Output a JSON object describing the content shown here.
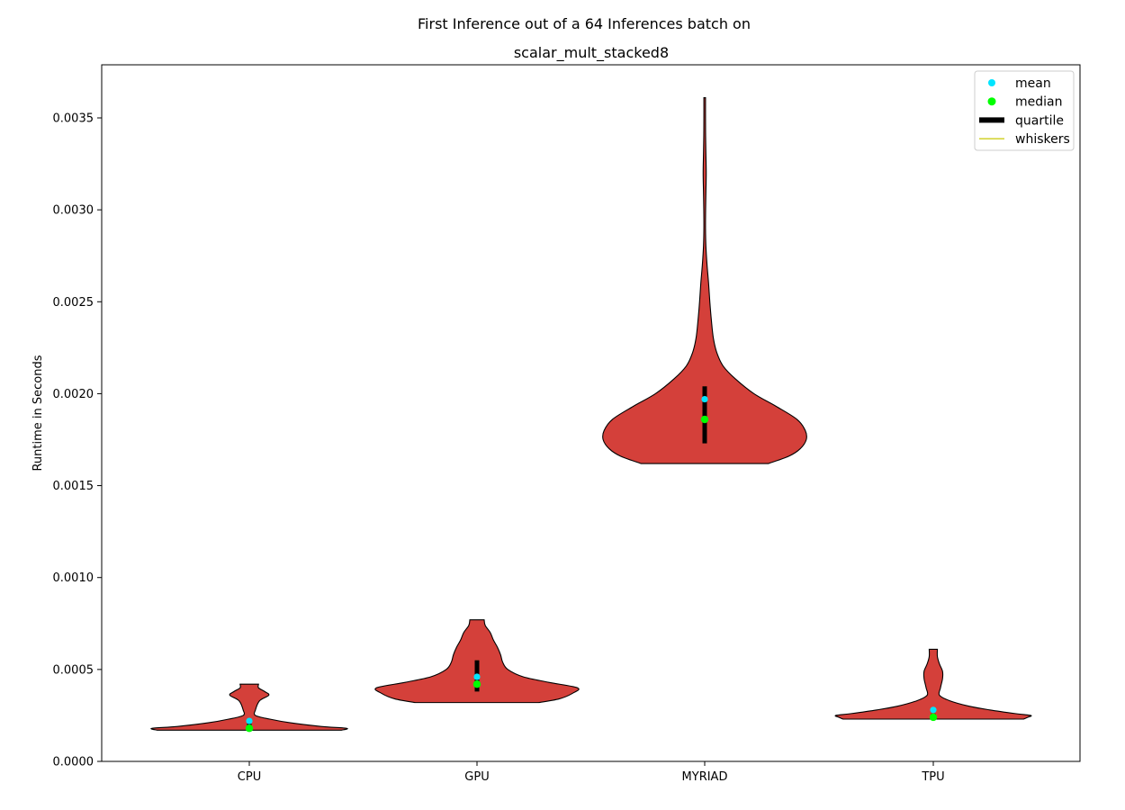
{
  "chart_data": {
    "type": "violin",
    "title_line1": "First Inference out of a 64 Inferences batch on",
    "title_line2": "scalar_mult_stacked8",
    "xlabel": "",
    "ylabel": "Runtime in Seconds",
    "ylim": [
      0,
      0.0038
    ],
    "yticks": [
      "0.0000",
      "0.0005",
      "0.0010",
      "0.0015",
      "0.0020",
      "0.0025",
      "0.0030",
      "0.0035"
    ],
    "grid": false,
    "legend_position": "top-right",
    "legend": [
      {
        "label": "mean",
        "symbol": "dot",
        "color": "#00e5ff"
      },
      {
        "label": "median",
        "symbol": "dot",
        "color": "#00ff00"
      },
      {
        "label": "quartile",
        "symbol": "bar",
        "color": "#000000"
      },
      {
        "label": "whiskers",
        "symbol": "line",
        "color": "#c8c800"
      }
    ],
    "colors": {
      "violin_fill": "#d4403a",
      "violin_edge": "#000000",
      "mean": "#00e5ff",
      "median": "#00ff00",
      "quartile": "#000000",
      "whiskers": "#c8c800"
    },
    "categories": [
      "CPU",
      "GPU",
      "MYRIAD",
      "TPU"
    ],
    "violins": [
      {
        "name": "CPU",
        "min": 0.00017,
        "max": 0.00042,
        "q1": 0.00017,
        "q3": 0.00023,
        "median": 0.00018,
        "mean": 0.00022,
        "whisker_low": 0.00017,
        "whisker_high": 0.00023,
        "profile": [
          [
            0.00017,
            0.9
          ],
          [
            0.00018,
            0.95
          ],
          [
            0.00019,
            0.7
          ],
          [
            0.00021,
            0.4
          ],
          [
            0.00023,
            0.2
          ],
          [
            0.00025,
            0.06
          ],
          [
            0.00028,
            0.06
          ],
          [
            0.00033,
            0.1
          ],
          [
            0.00036,
            0.19
          ],
          [
            0.00038,
            0.15
          ],
          [
            0.0004,
            0.09
          ],
          [
            0.00042,
            0.09
          ]
        ]
      },
      {
        "name": "GPU",
        "min": 0.00032,
        "max": 0.00077,
        "q1": 0.00038,
        "q3": 0.00055,
        "median": 0.00042,
        "mean": 0.00046,
        "whisker_low": 0.00038,
        "whisker_high": 0.00055,
        "profile": [
          [
            0.00032,
            0.6
          ],
          [
            0.00034,
            0.8
          ],
          [
            0.00037,
            0.93
          ],
          [
            0.0004,
            0.98
          ],
          [
            0.00043,
            0.7
          ],
          [
            0.00046,
            0.45
          ],
          [
            0.0005,
            0.3
          ],
          [
            0.00054,
            0.25
          ],
          [
            0.00058,
            0.23
          ],
          [
            0.00062,
            0.2
          ],
          [
            0.00066,
            0.16
          ],
          [
            0.0007,
            0.13
          ],
          [
            0.00074,
            0.08
          ],
          [
            0.00077,
            0.07
          ]
        ]
      },
      {
        "name": "MYRIAD",
        "min": 0.00162,
        "max": 0.00361,
        "q1": 0.00173,
        "q3": 0.00204,
        "median": 0.00186,
        "mean": 0.00197,
        "whisker_low": 0.00173,
        "whisker_high": 0.00204,
        "profile": [
          [
            0.00162,
            0.62
          ],
          [
            0.00166,
            0.82
          ],
          [
            0.0017,
            0.93
          ],
          [
            0.00175,
            0.99
          ],
          [
            0.0018,
            0.98
          ],
          [
            0.00186,
            0.9
          ],
          [
            0.00193,
            0.7
          ],
          [
            0.002,
            0.48
          ],
          [
            0.00208,
            0.3
          ],
          [
            0.00215,
            0.18
          ],
          [
            0.00222,
            0.12
          ],
          [
            0.0023,
            0.085
          ],
          [
            0.0024,
            0.065
          ],
          [
            0.0025,
            0.05
          ],
          [
            0.0026,
            0.038
          ],
          [
            0.0027,
            0.023
          ],
          [
            0.0028,
            0.012
          ],
          [
            0.0029,
            0.008
          ],
          [
            0.003,
            0.009
          ],
          [
            0.0031,
            0.012
          ],
          [
            0.0032,
            0.015
          ],
          [
            0.0033,
            0.012
          ],
          [
            0.0034,
            0.009
          ],
          [
            0.0035,
            0.008
          ],
          [
            0.00361,
            0.008
          ]
        ]
      },
      {
        "name": "TPU",
        "min": 0.00023,
        "max": 0.00061,
        "q1": 0.00023,
        "q3": 0.00026,
        "median": 0.00024,
        "mean": 0.00028,
        "whisker_low": 0.00023,
        "whisker_high": 0.00026,
        "profile": [
          [
            0.00023,
            0.88
          ],
          [
            0.00024,
            0.92
          ],
          [
            0.00025,
            0.95
          ],
          [
            0.00026,
            0.8
          ],
          [
            0.00028,
            0.55
          ],
          [
            0.0003,
            0.35
          ],
          [
            0.00033,
            0.16
          ],
          [
            0.00036,
            0.06
          ],
          [
            0.0004,
            0.07
          ],
          [
            0.00045,
            0.09
          ],
          [
            0.00049,
            0.09
          ],
          [
            0.00053,
            0.06
          ],
          [
            0.00057,
            0.04
          ],
          [
            0.00061,
            0.04
          ]
        ]
      }
    ]
  }
}
